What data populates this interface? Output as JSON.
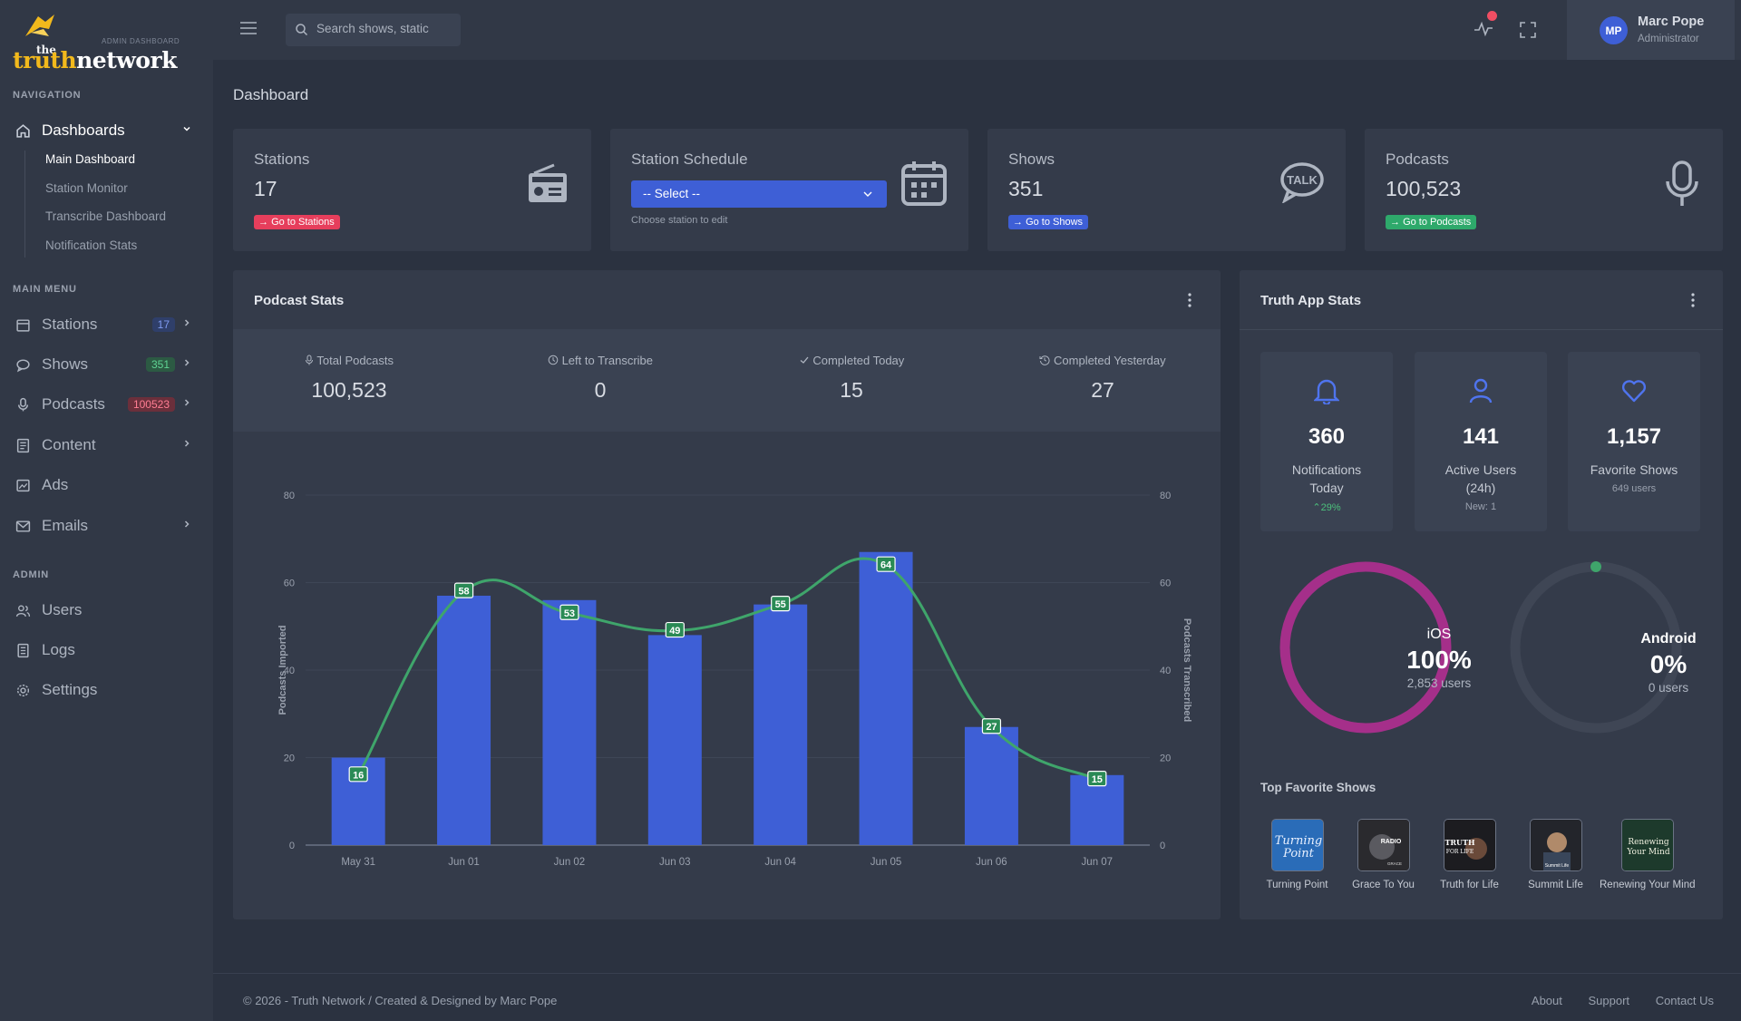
{
  "brand": {
    "the": "the",
    "truth": "truth",
    "network": "network",
    "subtitle": "ADMIN DASHBOARD"
  },
  "sidebar": {
    "nav_label": "NAVIGATION",
    "dashboards": {
      "label": "Dashboards",
      "sub": [
        "Main Dashboard",
        "Station Monitor",
        "Transcribe Dashboard",
        "Notification Stats"
      ]
    },
    "main_menu_label": "MAIN MENU",
    "menu": [
      {
        "label": "Stations",
        "badge": "17"
      },
      {
        "label": "Shows",
        "badge": "351"
      },
      {
        "label": "Podcasts",
        "badge": "100523"
      },
      {
        "label": "Content"
      },
      {
        "label": "Ads"
      },
      {
        "label": "Emails"
      }
    ],
    "admin_label": "ADMIN",
    "admin": [
      {
        "label": "Users"
      },
      {
        "label": "Logs"
      },
      {
        "label": "Settings"
      }
    ]
  },
  "topbar": {
    "search_placeholder": "Search shows, static",
    "user_name": "Marc Pope",
    "user_role": "Administrator",
    "initials": "MP"
  },
  "page_title": "Dashboard",
  "stats": {
    "stations": {
      "title": "Stations",
      "value": "17",
      "link": "Go to Stations"
    },
    "schedule": {
      "title": "Station Schedule",
      "select": "-- Select --",
      "help": "Choose station to edit"
    },
    "shows": {
      "title": "Shows",
      "value": "351",
      "link": "Go to Shows"
    },
    "podcasts": {
      "title": "Podcasts",
      "value": "100,523",
      "link": "Go to Podcasts"
    }
  },
  "podcast_stats": {
    "title": "Podcast Stats",
    "items": [
      {
        "label": "Total Podcasts",
        "value": "100,523"
      },
      {
        "label": "Left to Transcribe",
        "value": "0"
      },
      {
        "label": "Completed Today",
        "value": "15"
      },
      {
        "label": "Completed Yesterday",
        "value": "27"
      }
    ]
  },
  "chart_data": {
    "type": "bar",
    "categories": [
      "May 31",
      "Jun 01",
      "Jun 02",
      "Jun 03",
      "Jun 04",
      "Jun 05",
      "Jun 06",
      "Jun 07"
    ],
    "series": [
      {
        "name": "Podcasts Imported",
        "type": "bar",
        "values": [
          20,
          57,
          56,
          48,
          55,
          67,
          27,
          16
        ],
        "color": "#3e5fd6"
      },
      {
        "name": "Podcasts Transcribed",
        "type": "line",
        "values": [
          16,
          58,
          53,
          49,
          55,
          64,
          27,
          15
        ],
        "color": "#3fa56b"
      }
    ],
    "ylabel": "Podcasts Imported",
    "y2label": "Podcasts Transcribed",
    "ylim": [
      0,
      80
    ],
    "yticks": [
      0,
      20,
      40,
      60,
      80
    ],
    "grid": true
  },
  "truth_app": {
    "title": "Truth App Stats",
    "tiles": [
      {
        "value": "360",
        "label1": "Notifications",
        "label2": "Today",
        "sub": "29%",
        "sub_color": "#4cc17c"
      },
      {
        "value": "141",
        "label1": "Active Users",
        "label2": "(24h)",
        "sub": "New: 1",
        "sub_color": "#9aa1ae"
      },
      {
        "value": "1,157",
        "label1": "Favorite Shows",
        "label2": "",
        "sub": "649 users",
        "sub_color": "#9aa1ae"
      }
    ],
    "ios": {
      "name": "iOS",
      "pct": "100%",
      "users": "2,853 users",
      "value": 100,
      "color": "#a52f8a"
    },
    "android": {
      "name": "Android",
      "pct": "0%",
      "users": "0 users",
      "value": 0,
      "color": "#3fa56b"
    },
    "top_title": "Top Favorite Shows",
    "shows": [
      "Turning Point",
      "Grace To You",
      "Truth for Life",
      "Summit Life",
      "Renewing Your Mind"
    ]
  },
  "footer": {
    "copy": "© 2026 - Truth Network / Created & Designed by Marc Pope",
    "links": [
      "About",
      "Support",
      "Contact Us"
    ]
  },
  "colors": {
    "accent": "#3e5fd6",
    "danger": "#e63e5c",
    "success": "#2ea96b"
  }
}
